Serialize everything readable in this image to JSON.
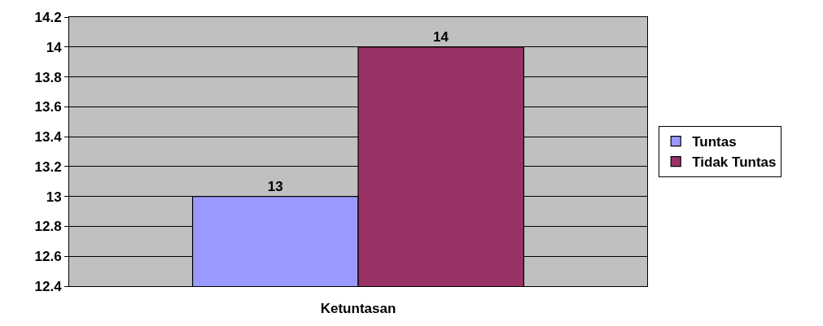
{
  "chart_data": {
    "type": "bar",
    "categories": [
      "Ketuntasan"
    ],
    "series": [
      {
        "name": "Tuntas",
        "color": "#9999ff",
        "values": [
          13
        ]
      },
      {
        "name": "Tidak Tuntas",
        "color": "#993366",
        "values": [
          14
        ]
      }
    ],
    "ylim": [
      12.4,
      14.2
    ],
    "yticks": [
      12.4,
      12.6,
      12.8,
      13,
      13.2,
      13.4,
      13.6,
      13.8,
      14,
      14.2
    ],
    "grid": "y",
    "legend": "right",
    "data_labels": true
  }
}
